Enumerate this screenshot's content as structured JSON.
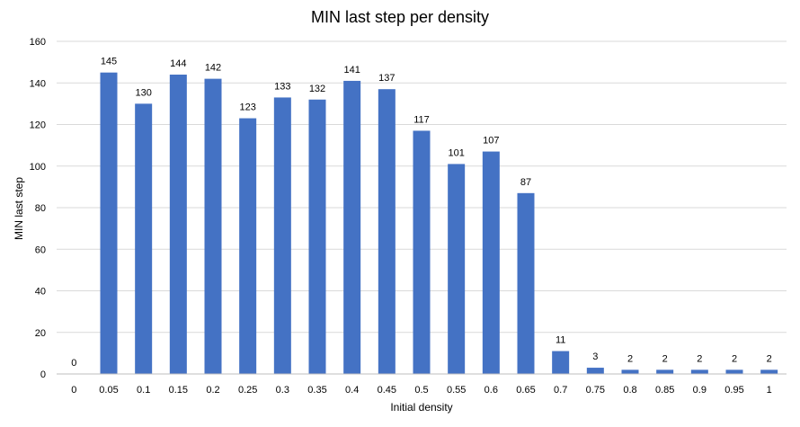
{
  "chart_data": {
    "type": "bar",
    "title": "MIN last step per density",
    "xlabel": "Initial density",
    "ylabel": "MIN last step",
    "categories": [
      "0",
      "0.05",
      "0.1",
      "0.15",
      "0.2",
      "0.25",
      "0.3",
      "0.35",
      "0.4",
      "0.45",
      "0.5",
      "0.55",
      "0.6",
      "0.65",
      "0.7",
      "0.75",
      "0.8",
      "0.85",
      "0.9",
      "0.95",
      "1"
    ],
    "values": [
      0,
      145,
      130,
      144,
      142,
      123,
      133,
      132,
      141,
      137,
      117,
      101,
      107,
      87,
      11,
      3,
      2,
      2,
      2,
      2,
      2
    ],
    "ylim": [
      0,
      160
    ],
    "yticks": [
      0,
      20,
      40,
      60,
      80,
      100,
      120,
      140,
      160
    ],
    "grid": true,
    "data_labels": true,
    "bar_color": "#4472c4",
    "legend": "none"
  }
}
